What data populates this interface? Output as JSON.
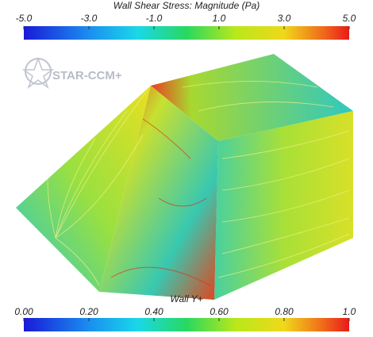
{
  "logo": "STAR-CCM+",
  "colorbars": [
    {
      "title": "Wall Shear Stress: Magnitude (Pa)",
      "range": [
        -5,
        5
      ],
      "ticks": [
        {
          "value": -5,
          "label": "-5.0"
        },
        {
          "value": -3,
          "label": "-3.0"
        },
        {
          "value": -1,
          "label": "-1.0"
        },
        {
          "value": 1,
          "label": "1.0"
        },
        {
          "value": 3,
          "label": "3.0"
        },
        {
          "value": 5,
          "label": "5.0"
        }
      ]
    },
    {
      "title": "Wall Y+",
      "range": [
        0,
        1
      ],
      "ticks": [
        {
          "value": 0,
          "label": "0.00"
        },
        {
          "value": 0.2,
          "label": "0.20"
        },
        {
          "value": 0.4,
          "label": "0.40"
        },
        {
          "value": 0.6,
          "label": "0.60"
        },
        {
          "value": 0.8,
          "label": "0.80"
        },
        {
          "value": 1,
          "label": "1.0"
        }
      ]
    }
  ]
}
